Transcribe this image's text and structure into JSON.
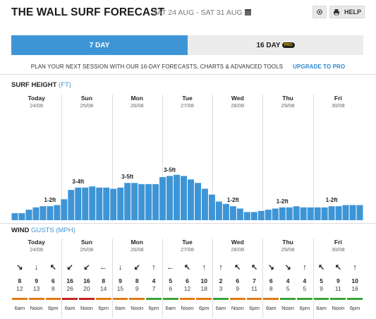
{
  "header": {
    "title": "THE WALL SURF FORECAST",
    "date_range": "SAT 24 AUG - SAT 31 AUG",
    "gear_icon": "gear-icon",
    "print_icon": "print-icon",
    "help_label": "HELP"
  },
  "tabs": {
    "seven_day": "7 DAY",
    "sixteen_day": "16 DAY",
    "pro_badge": "PRO"
  },
  "promo": {
    "text": "PLAN YOUR NEXT SESSION WITH OUR 16-DAY FORECASTS, CHARTS & ADVANCED TOOLS",
    "link": "UPGRADE TO PRO"
  },
  "surf": {
    "title": "SURF HEIGHT",
    "unit": "(FT)"
  },
  "wind": {
    "title": "WIND",
    "sub": "GUSTS",
    "unit": "(MPH)"
  },
  "days": [
    {
      "name": "Today",
      "date": "24/08"
    },
    {
      "name": "Sun",
      "date": "25/08"
    },
    {
      "name": "Mon",
      "date": "26/08"
    },
    {
      "name": "Tue",
      "date": "27/08"
    },
    {
      "name": "Wed",
      "date": "28/08"
    },
    {
      "name": "Thu",
      "date": "29/08"
    },
    {
      "name": "Fri",
      "date": "30/08"
    }
  ],
  "chart_data": {
    "type": "bar",
    "title": "SURF HEIGHT (FT)",
    "ylim": [
      0,
      10
    ],
    "values": [
      0.6,
      0.6,
      0.9,
      1.1,
      1.2,
      1.2,
      1.3,
      1.8,
      2.6,
      2.8,
      2.8,
      2.9,
      2.8,
      2.8,
      2.7,
      2.8,
      3.2,
      3.2,
      3.1,
      3.1,
      3.1,
      3.7,
      3.8,
      3.9,
      3.8,
      3.5,
      3.2,
      2.7,
      2.2,
      1.6,
      1.4,
      1.2,
      1.0,
      0.7,
      0.7,
      0.8,
      0.9,
      1.0,
      1.1,
      1.1,
      1.2,
      1.1,
      1.1,
      1.1,
      1.1,
      1.2,
      1.2,
      1.3,
      1.3,
      1.3
    ],
    "day_labels": [
      {
        "day": 0,
        "text": "1-2ft",
        "value_index": 5
      },
      {
        "day": 1,
        "text": "3-4ft",
        "value_index": 9
      },
      {
        "day": 2,
        "text": "3-5ft",
        "value_index": 16
      },
      {
        "day": 3,
        "text": "3-5ft",
        "value_index": 22
      },
      {
        "day": 4,
        "text": "1-2ft",
        "value_index": 31
      },
      {
        "day": 5,
        "text": "1-2ft",
        "value_index": 38
      },
      {
        "day": 6,
        "text": "1-2ft",
        "value_index": 45
      }
    ]
  },
  "wind_data": {
    "times": [
      "6am",
      "Noon",
      "6pm"
    ],
    "cells": [
      {
        "dir": "↘",
        "speed": "8",
        "gust": "12",
        "color": "#e07b12"
      },
      {
        "dir": "↓",
        "speed": "9",
        "gust": "13",
        "color": "#e07b12"
      },
      {
        "dir": "↖",
        "speed": "6",
        "gust": "8",
        "color": "#e07b12"
      },
      {
        "dir": "↙",
        "speed": "16",
        "gust": "26",
        "color": "#c8211d"
      },
      {
        "dir": "↙",
        "speed": "16",
        "gust": "20",
        "color": "#c8211d"
      },
      {
        "dir": "←",
        "speed": "8",
        "gust": "14",
        "color": "#e07b12"
      },
      {
        "dir": "↓",
        "speed": "9",
        "gust": "15",
        "color": "#e07b12"
      },
      {
        "dir": "↙",
        "speed": "8",
        "gust": "9",
        "color": "#e07b12"
      },
      {
        "dir": "↑",
        "speed": "4",
        "gust": "7",
        "color": "#3aa33a"
      },
      {
        "dir": "←",
        "speed": "5",
        "gust": "6",
        "color": "#3aa33a"
      },
      {
        "dir": "↖",
        "speed": "6",
        "gust": "12",
        "color": "#e07b12"
      },
      {
        "dir": "↑",
        "speed": "10",
        "gust": "18",
        "color": "#e07b12"
      },
      {
        "dir": "↑",
        "speed": "2",
        "gust": "3",
        "color": "#3aa33a"
      },
      {
        "dir": "↖",
        "speed": "6",
        "gust": "9",
        "color": "#e07b12"
      },
      {
        "dir": "↖",
        "speed": "7",
        "gust": "11",
        "color": "#e07b12"
      },
      {
        "dir": "↘",
        "speed": "6",
        "gust": "8",
        "color": "#e07b12"
      },
      {
        "dir": "↘",
        "speed": "4",
        "gust": "5",
        "color": "#3aa33a"
      },
      {
        "dir": "↑",
        "speed": "4",
        "gust": "5",
        "color": "#3aa33a"
      },
      {
        "dir": "↖",
        "speed": "5",
        "gust": "9",
        "color": "#3aa33a"
      },
      {
        "dir": "↖",
        "speed": "9",
        "gust": "11",
        "color": "#3aa33a"
      },
      {
        "dir": "↑",
        "speed": "10",
        "gust": "16",
        "color": "#3aa33a"
      }
    ]
  }
}
